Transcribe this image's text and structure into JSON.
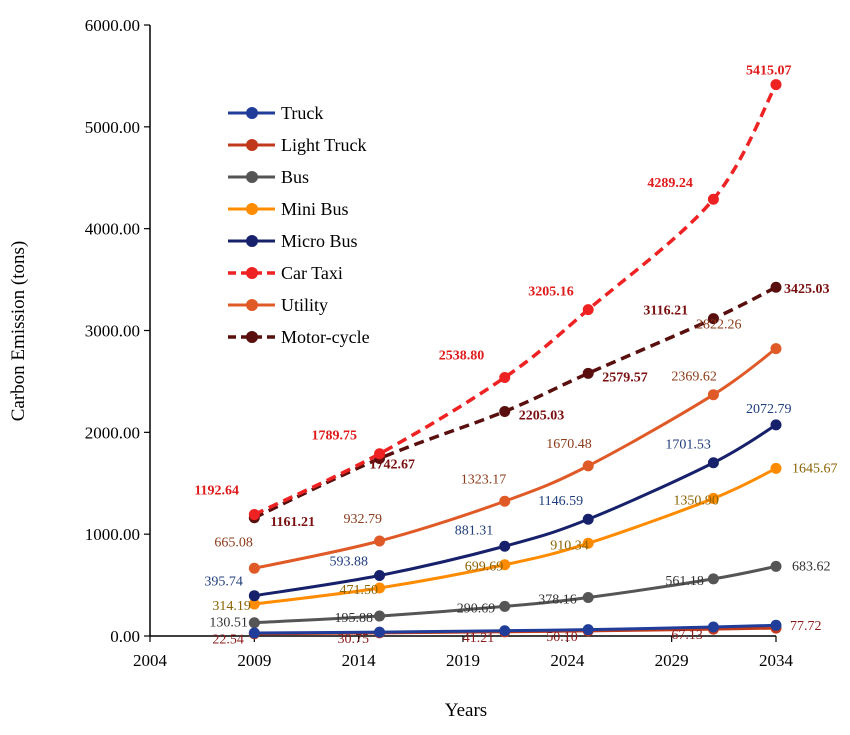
{
  "chart_data": {
    "type": "line",
    "title": "",
    "xlabel": "Years",
    "ylabel": "Carbon Emission (tons)",
    "xlim": [
      2004,
      2034
    ],
    "ylim": [
      0,
      6000
    ],
    "x_ticks": [
      "2004",
      "2009",
      "2014",
      "2019",
      "2024",
      "2029",
      "2034"
    ],
    "y_ticks": [
      "0.00",
      "1000.00",
      "2000.00",
      "3000.00",
      "4000.00",
      "5000.00",
      "6000.00"
    ],
    "grid": false,
    "legend_position": "top-left",
    "x": [
      2009,
      2015,
      2021,
      2025,
      2031,
      2034
    ],
    "series": [
      {
        "name": "Truck",
        "color": "#1f3d99",
        "dashed": false,
        "values": [
          30,
          38,
          52,
          62,
          88,
          105
        ],
        "labels": []
      },
      {
        "name": "Light Truck",
        "color": "#c0391b",
        "dashed": false,
        "values": [
          22.54,
          30.75,
          41.21,
          50.1,
          67.13,
          77.72
        ],
        "labels": [
          "22.54",
          "30.75",
          "41.21",
          "50.10",
          "67.13",
          "77.72"
        ],
        "label_color": "#8b1a1a"
      },
      {
        "name": "Bus",
        "color": "#555555",
        "dashed": false,
        "values": [
          130.51,
          195.88,
          290.69,
          378.16,
          561.18,
          683.62
        ],
        "labels": [
          "130.51",
          "195.88",
          "290.69",
          "378.16",
          "561.18",
          "683.62"
        ],
        "label_color": "#333333"
      },
      {
        "name": "Mini Bus",
        "color": "#ff8c00",
        "dashed": false,
        "values": [
          314.19,
          471.5,
          699.69,
          910.34,
          1350.9,
          1645.67
        ],
        "labels": [
          "314.19",
          "471.50",
          "699.69",
          "910.34",
          "1350.90",
          "1645.67"
        ],
        "label_color": "#8a6200"
      },
      {
        "name": "Micro Bus",
        "color": "#17216b",
        "dashed": false,
        "values": [
          395.74,
          593.88,
          881.31,
          1146.59,
          1701.53,
          2072.79
        ],
        "labels": [
          "395.74",
          "593.88",
          "881.31",
          "1146.59",
          "1701.53",
          "2072.79"
        ],
        "label_color": "#1f3d7a"
      },
      {
        "name": "Car Taxi",
        "color": "#ee2222",
        "dashed": true,
        "values": [
          1192.64,
          1789.75,
          2538.8,
          3205.16,
          4289.24,
          5415.07
        ],
        "labels": [
          "1192.64",
          "1789.75",
          "2538.80",
          "3205.16",
          "4289.24",
          "5415.07"
        ],
        "label_color": "#e01b1b"
      },
      {
        "name": "Utility",
        "color": "#e05a28",
        "dashed": false,
        "values": [
          665.08,
          932.79,
          1323.17,
          1670.48,
          2369.62,
          2822.26
        ],
        "labels": [
          "665.08",
          "932.79",
          "1323.17",
          "1670.48",
          "2369.62",
          "2822.26"
        ],
        "label_color": "#8b3a1a"
      },
      {
        "name": "Motor-cycle",
        "color": "#5a0f0f",
        "dashed": true,
        "values": [
          1161.21,
          1742.67,
          2205.03,
          2579.57,
          3116.21,
          3425.03
        ],
        "labels": [
          "1161.21",
          "1742.67",
          "2205.03",
          "2579.57",
          "3116.21",
          "3425.03"
        ],
        "label_color": "#7a1010"
      }
    ]
  }
}
